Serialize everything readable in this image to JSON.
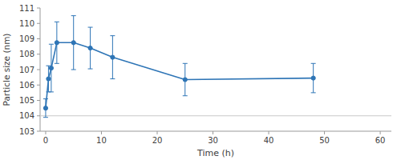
{
  "chart_data": {
    "type": "line",
    "x": [
      0,
      0.5,
      1,
      2,
      5,
      8,
      12,
      25,
      48
    ],
    "values": [
      104.5,
      106.4,
      107.1,
      108.75,
      108.75,
      108.4,
      107.8,
      106.35,
      106.45
    ],
    "yerr": [
      0.6,
      0.85,
      1.55,
      1.35,
      1.75,
      1.35,
      1.4,
      1.05,
      0.95
    ],
    "xlabel": "Time (h)",
    "ylabel": "Particle size (nm)",
    "xlim": [
      -1,
      62
    ],
    "ylim": [
      103,
      111
    ],
    "xticks": [
      0,
      10,
      20,
      30,
      40,
      50,
      60
    ],
    "yticks": [
      103,
      104,
      105,
      106,
      107,
      108,
      109,
      110,
      111
    ],
    "color": "#2e75b6",
    "marker": "circle",
    "hline": 104,
    "hline_color": "#c8c8c8",
    "grid": false
  }
}
